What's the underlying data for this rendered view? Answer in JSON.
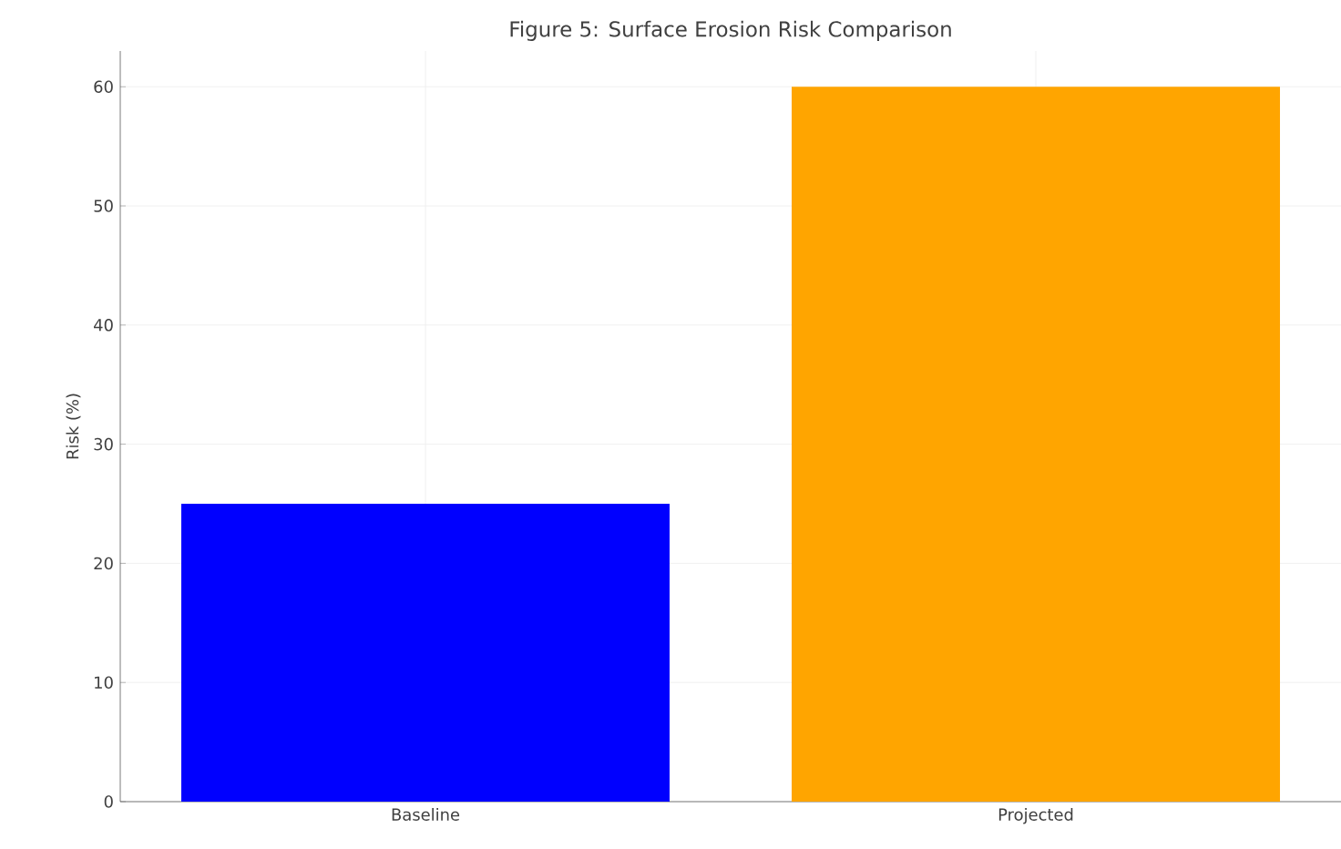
{
  "chart_data": {
    "type": "bar",
    "title": "Figure 5: Surface Erosion Risk Comparison",
    "ylabel": "Risk (%)",
    "categories": [
      "Baseline",
      "Projected"
    ],
    "values": [
      25,
      60
    ],
    "colors": [
      "#0000ff",
      "#ffa500"
    ],
    "ylim": [
      0,
      63
    ],
    "yticks": [
      0,
      10,
      20,
      30,
      40,
      50,
      60
    ],
    "grid": true
  }
}
